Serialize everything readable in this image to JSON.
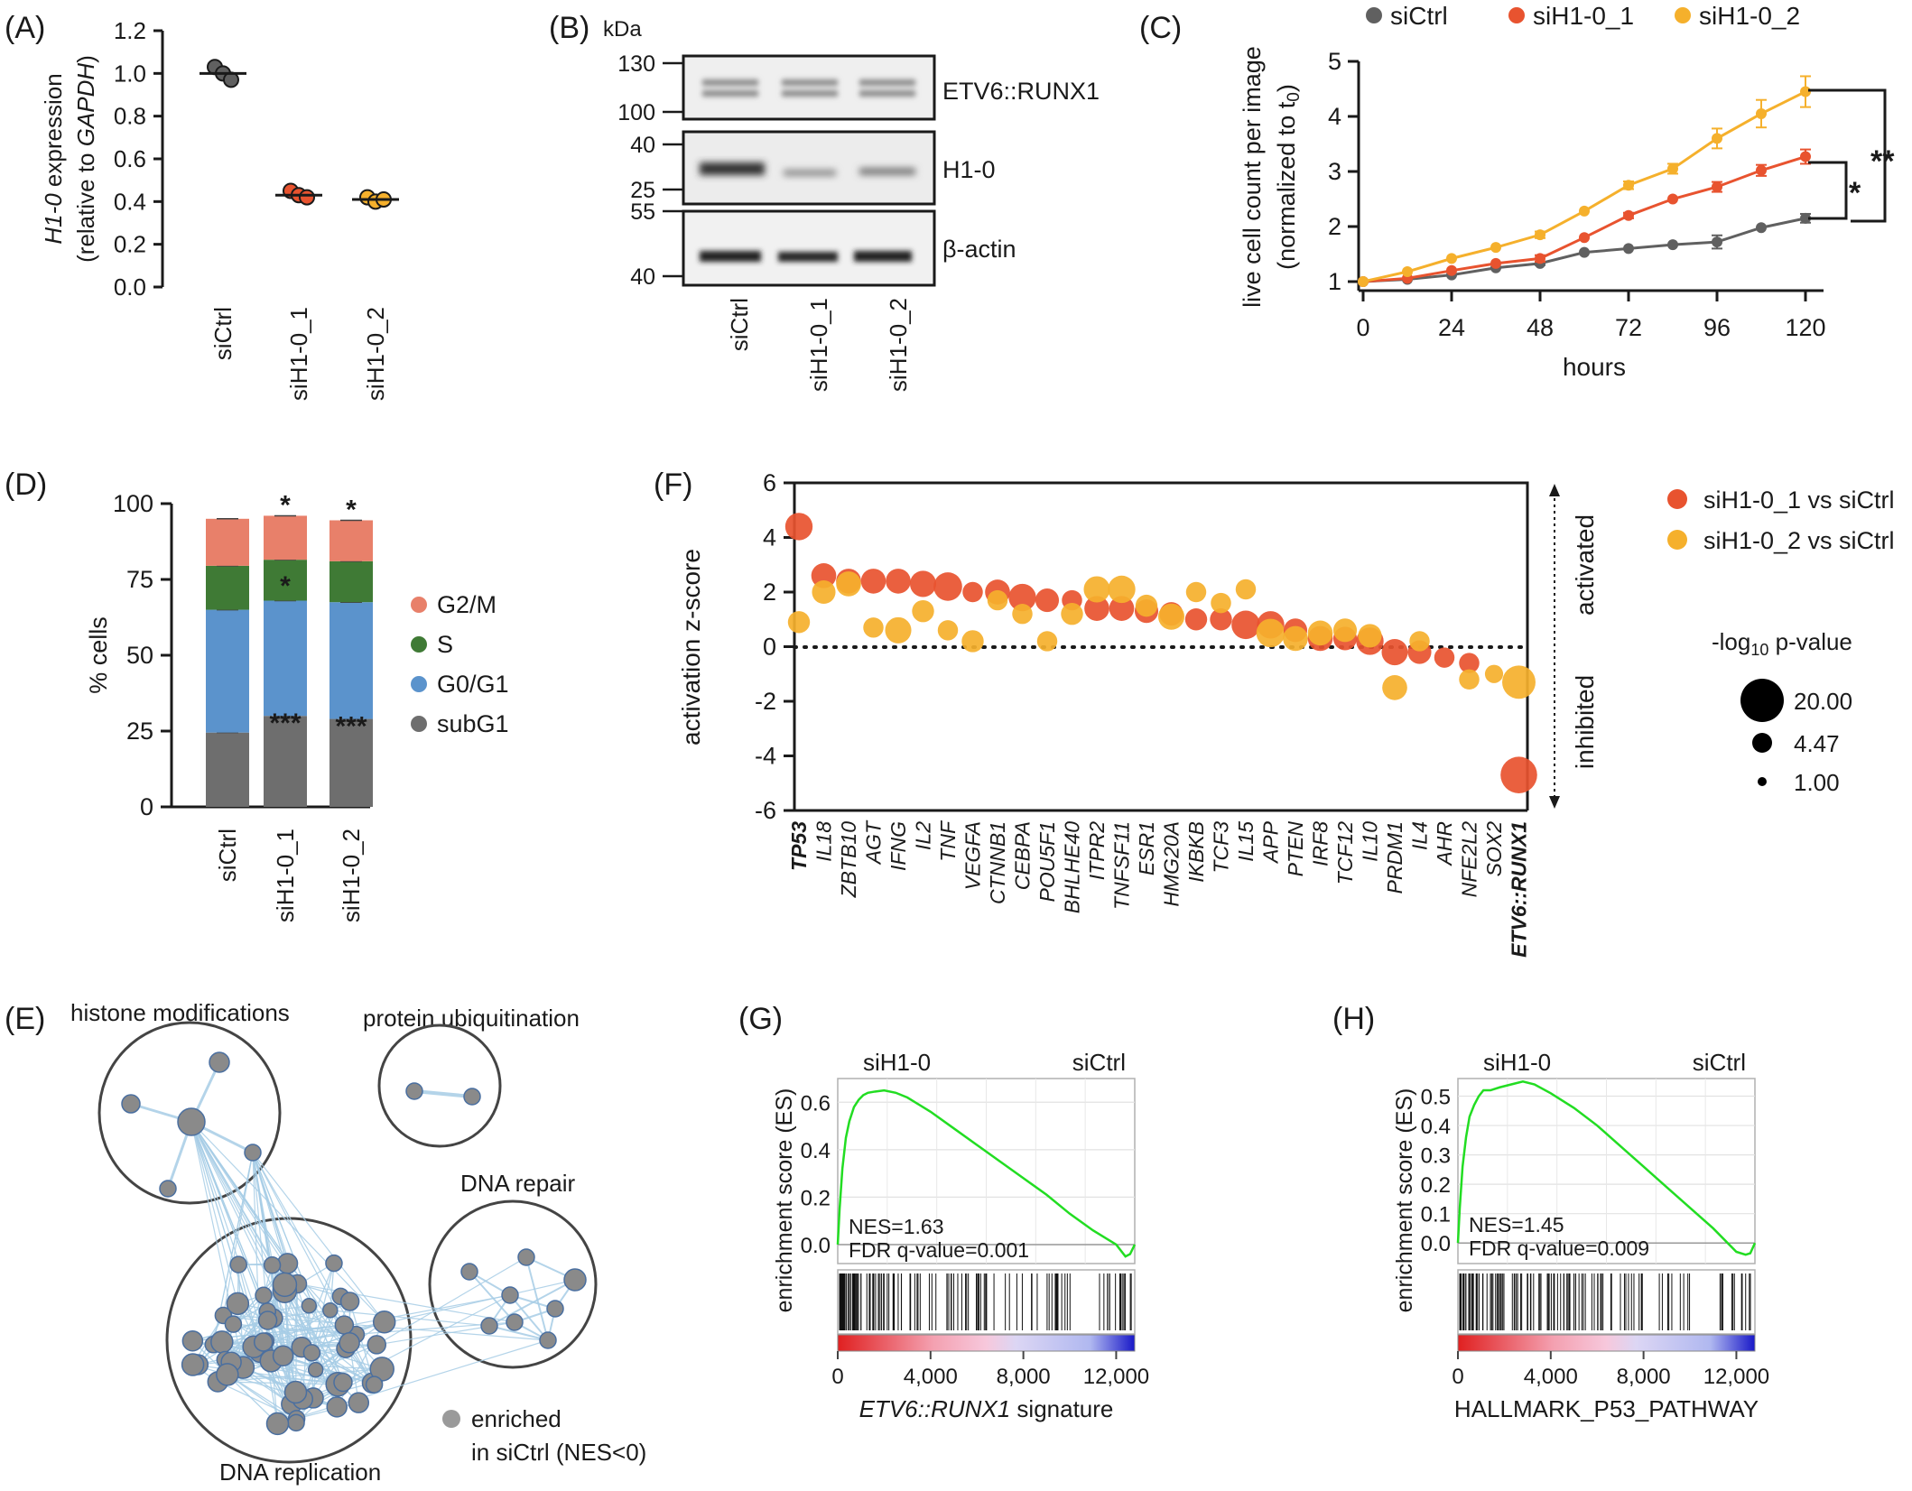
{
  "panel_labels": {
    "A": "(A)",
    "B": "(B)",
    "C": "(C)",
    "D": "(D)",
    "E": "(E)",
    "F": "(F)",
    "G": "(G)",
    "H": "(H)"
  },
  "colors": {
    "siCtrl": "#606060",
    "siH1_0_1": "#e8532f",
    "siH1_0_2": "#f5b02c",
    "G2M": "#e8806a",
    "S": "#3f7a35",
    "G0G1": "#5b93cc",
    "subG1": "#6e6e6e",
    "network_node": "#8a8a8a",
    "network_edge": "#a7cde6",
    "gsea_curve": "#22dd22"
  },
  "chart_data": [
    {
      "id": "A",
      "type": "scatter",
      "ylabel_gene": "H1-0",
      "ylabel_rest": " expression",
      "ylabel2_pre": "(relative to ",
      "ylabel2_gene": "GAPDH",
      "ylabel2_post": ")",
      "ylim": [
        0,
        1.2
      ],
      "yticks": [
        "0.0",
        "0.2",
        "0.4",
        "0.6",
        "0.8",
        "1.0",
        "1.2"
      ],
      "categories": [
        "siCtrl",
        "siH1-0_1",
        "siH1-0_2"
      ],
      "points": [
        [
          1.03,
          1.0,
          0.97
        ],
        [
          0.45,
          0.43,
          0.42
        ],
        [
          0.42,
          0.4,
          0.41
        ]
      ],
      "means": [
        1.0,
        0.43,
        0.41
      ],
      "sd": [
        0.03,
        0.02,
        0.01
      ]
    },
    {
      "id": "B",
      "type": "western_blot",
      "unit": "kDa",
      "lanes": [
        "siCtrl",
        "siH1-0_1",
        "siH1-0_2"
      ],
      "blots": [
        {
          "name": "ETV6::RUNX1",
          "markers": [
            "130",
            "100"
          ]
        },
        {
          "name": "H1-0",
          "markers": [
            "40",
            "25"
          ]
        },
        {
          "name": "β-actin",
          "markers": [
            "55",
            "40"
          ]
        }
      ]
    },
    {
      "id": "C",
      "type": "line",
      "ylabel_main": "live cell count per image",
      "ylabel2_pre": "(normalized to t",
      "ylabel2_sub": "0",
      "ylabel2_post": ")",
      "xlabel": "hours",
      "ylim": [
        1,
        5
      ],
      "yticks": [
        "1",
        "2",
        "3",
        "4",
        "5"
      ],
      "xticks": [
        "0",
        "24",
        "48",
        "72",
        "96",
        "120"
      ],
      "x": [
        0,
        12,
        24,
        36,
        48,
        60,
        72,
        84,
        96,
        108,
        120
      ],
      "series": [
        {
          "name": "siCtrl",
          "values": [
            1.0,
            1.04,
            1.12,
            1.25,
            1.33,
            1.53,
            1.6,
            1.67,
            1.72,
            1.98,
            2.15
          ],
          "err": [
            0,
            0,
            0,
            0,
            0.03,
            0,
            0,
            0,
            0.12,
            0,
            0.08
          ]
        },
        {
          "name": "siH1-0_1",
          "values": [
            1.0,
            1.06,
            1.2,
            1.33,
            1.42,
            1.8,
            2.2,
            2.5,
            2.72,
            3.02,
            3.27
          ],
          "err": [
            0,
            0,
            0,
            0,
            0.06,
            0,
            0.05,
            0,
            0.09,
            0.1,
            0.13
          ]
        },
        {
          "name": "siH1-0_2",
          "values": [
            1.0,
            1.18,
            1.42,
            1.62,
            1.85,
            2.28,
            2.75,
            3.05,
            3.6,
            4.05,
            4.45
          ],
          "err": [
            0,
            0,
            0,
            0,
            0.06,
            0,
            0.07,
            0.09,
            0.18,
            0.25,
            0.28
          ]
        }
      ],
      "significance": [
        "*",
        "**"
      ]
    },
    {
      "id": "D",
      "type": "bar",
      "stacked": true,
      "ylabel": "% cells",
      "ylim": [
        0,
        100
      ],
      "yticks": [
        "0",
        "25",
        "50",
        "75",
        "100"
      ],
      "categories": [
        "siCtrl",
        "siH1-0_1",
        "siH1-0_2"
      ],
      "series": [
        {
          "name": "subG1",
          "values": [
            24.5,
            30,
            29
          ]
        },
        {
          "name": "G0/G1",
          "values": [
            40.5,
            38,
            38.5
          ]
        },
        {
          "name": "S",
          "values": [
            14.5,
            13.5,
            13.5
          ]
        },
        {
          "name": "G2/M",
          "values": [
            15.5,
            14.5,
            13.5
          ]
        }
      ],
      "legend_order": [
        "G2/M",
        "S",
        "G0/G1",
        "subG1"
      ],
      "annotations": {
        "G2M_top": [
          "",
          "*",
          "*"
        ],
        "S_mid": [
          "",
          "*",
          ""
        ],
        "subG1_top": [
          "",
          "***",
          "***"
        ]
      }
    },
    {
      "id": "F",
      "type": "scatter",
      "ylabel": "activation z-score",
      "ylim": [
        -6,
        6
      ],
      "yticks": [
        "-6",
        "-4",
        "-2",
        "0",
        "2",
        "4",
        "6"
      ],
      "side_top": "activated",
      "side_bottom": "inhibited",
      "legend": [
        "siH1-0_1 vs siCtrl",
        "siH1-0_2 vs siCtrl"
      ],
      "size_title_pre": "-log",
      "size_title_sub": "10",
      "size_title_post": " p-value",
      "size_legend": [
        "20.00",
        "4.47",
        "1.00"
      ],
      "genes": [
        "TP53",
        "IL18",
        "ZBTB10",
        "AGT",
        "IFNG",
        "IL2",
        "TNF",
        "VEGFA",
        "CTNNB1",
        "CEBPA",
        "POU5F1",
        "BHLHE40",
        "ITPR2",
        "TNFSF11",
        "ESR1",
        "HMG20A",
        "IKBKB",
        "TCF3",
        "IL15",
        "APP",
        "PTEN",
        "IRF8",
        "TCF12",
        "IL10",
        "PRDM1",
        "IL4",
        "AHR",
        "NFE2L2",
        "SOX2",
        "ETV6::RUNX1"
      ],
      "bold_genes": [
        "TP53",
        "ETV6::RUNX1"
      ],
      "s1_z": [
        4.4,
        2.6,
        2.4,
        2.4,
        2.4,
        2.3,
        2.2,
        2.0,
        2.0,
        1.8,
        1.7,
        1.7,
        1.4,
        1.4,
        1.3,
        1.2,
        1.0,
        1.0,
        0.8,
        0.8,
        0.6,
        0.3,
        0.3,
        0.2,
        -0.2,
        -0.2,
        -0.4,
        -0.6,
        null,
        -4.7
      ],
      "s1_p": [
        8,
        6,
        6,
        6,
        6,
        7,
        9,
        3,
        6,
        8,
        5,
        3,
        6,
        6,
        5,
        5,
        4,
        4,
        9,
        8,
        5,
        6,
        5,
        8,
        7,
        5,
        3,
        3,
        null,
        18
      ],
      "s2_z": [
        0.9,
        2.0,
        2.3,
        0.7,
        0.6,
        1.3,
        0.6,
        0.2,
        1.7,
        1.2,
        0.2,
        1.2,
        2.1,
        2.1,
        1.5,
        1.1,
        2.0,
        1.6,
        2.1,
        0.5,
        0.3,
        0.5,
        0.6,
        0.4,
        -1.5,
        0.2,
        null,
        -1.2,
        -1.0,
        -1.3
      ],
      "s2_p": [
        4,
        5,
        6,
        3,
        7,
        4,
        3,
        4,
        3,
        3,
        3,
        4,
        7,
        8,
        4,
        7,
        3,
        3,
        3,
        9,
        6,
        6,
        5,
        5,
        6,
        3,
        null,
        3,
        2,
        14
      ]
    },
    {
      "id": "E",
      "type": "network",
      "clusters": [
        "histone modifications",
        "protein ubiquitination",
        "DNA repair",
        "DNA replication"
      ],
      "legend_line1": "enriched",
      "legend_line2": "in siCtrl (NES<0)"
    },
    {
      "id": "G",
      "type": "line",
      "ylabel": "enrichment score (ES)",
      "left_label": "siH1-0",
      "right_label": "siCtrl",
      "xlabel_italic": "ETV6::RUNX1",
      "xlabel_rest": " signature",
      "yticks": [
        "0.0",
        "0.2",
        "0.4",
        "0.6"
      ],
      "ylim": [
        -0.08,
        0.7
      ],
      "xticks": [
        "0",
        "4,000",
        "8,000",
        "12,000"
      ],
      "xlim": [
        0,
        12800
      ],
      "nes": "NES=1.63",
      "fdr": "FDR q-value=0.001",
      "x": [
        0,
        80,
        200,
        350,
        500,
        700,
        900,
        1100,
        1300,
        1600,
        2000,
        2500,
        3000,
        4000,
        5000,
        6000,
        7000,
        8000,
        9000,
        10000,
        11000,
        12000,
        12400,
        12600,
        12800
      ],
      "values": [
        0,
        0.15,
        0.32,
        0.45,
        0.52,
        0.58,
        0.61,
        0.63,
        0.64,
        0.645,
        0.65,
        0.64,
        0.62,
        0.56,
        0.49,
        0.42,
        0.35,
        0.28,
        0.21,
        0.13,
        0.06,
        0,
        -0.05,
        -0.04,
        0
      ]
    },
    {
      "id": "H",
      "type": "line",
      "ylabel": "enrichment score (ES)",
      "left_label": "siH1-0",
      "right_label": "siCtrl",
      "xlabel": "HALLMARK_P53_PATHWAY",
      "yticks": [
        "0.0",
        "0.1",
        "0.2",
        "0.3",
        "0.4",
        "0.5"
      ],
      "ylim": [
        -0.07,
        0.56
      ],
      "xticks": [
        "0",
        "4,000",
        "8,000",
        "12,000"
      ],
      "xlim": [
        0,
        12800
      ],
      "nes": "NES=1.45",
      "fdr": "FDR q-value=0.009",
      "x": [
        0,
        80,
        200,
        350,
        500,
        700,
        900,
        1100,
        1400,
        1800,
        2300,
        2800,
        3300,
        4000,
        5000,
        6000,
        7000,
        8000,
        9000,
        10000,
        11000,
        12000,
        12400,
        12600,
        12800
      ],
      "values": [
        0,
        0.12,
        0.26,
        0.36,
        0.43,
        0.47,
        0.5,
        0.52,
        0.52,
        0.53,
        0.54,
        0.55,
        0.54,
        0.51,
        0.46,
        0.4,
        0.33,
        0.26,
        0.19,
        0.12,
        0.05,
        -0.03,
        -0.04,
        -0.035,
        0
      ]
    }
  ]
}
